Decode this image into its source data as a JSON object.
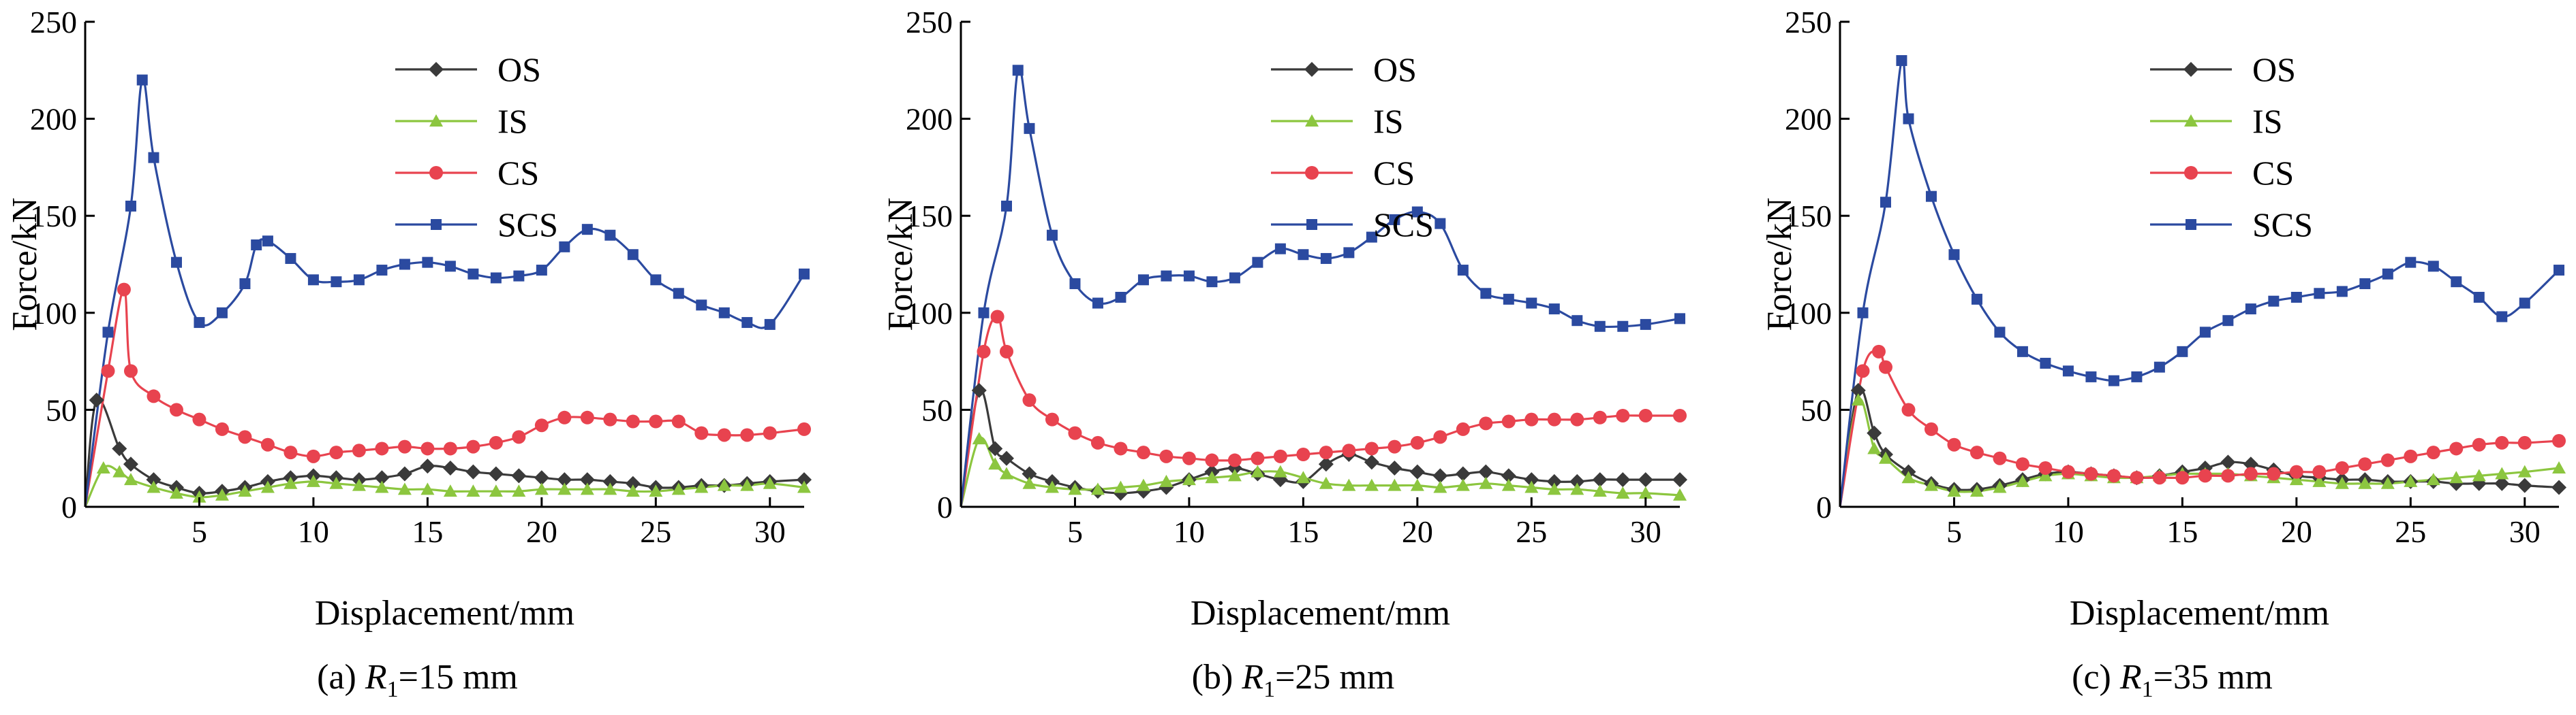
{
  "figure": {
    "panels": [
      {
        "caption_prefix": "(a)",
        "caption_suffix": "=15 mm"
      },
      {
        "caption_prefix": "(b)",
        "caption_suffix": "=25 mm"
      },
      {
        "caption_prefix": "(c)",
        "caption_suffix": "=35 mm"
      }
    ],
    "caption_var": "R",
    "caption_sub": "1"
  },
  "colors": {
    "OS": "#3a3a3a",
    "IS": "#8cc63f",
    "CS": "#e8434f",
    "SCS": "#2b4aa0"
  },
  "chart_data": [
    {
      "type": "line",
      "title": "(a) R1=15 mm",
      "xlabel": "Displacement/mm",
      "ylabel": "Force/kN",
      "xlim": [
        0,
        31.5
      ],
      "ylim": [
        0,
        250
      ],
      "xticks": [
        5,
        10,
        15,
        20,
        25,
        30
      ],
      "yticks": [
        0,
        50,
        100,
        150,
        200,
        250
      ],
      "legend": [
        "OS",
        "IS",
        "CS",
        "SCS"
      ],
      "series": [
        {
          "name": "OS",
          "marker": "diamond",
          "x": [
            0,
            0.5,
            1.5,
            2,
            3,
            4,
            5,
            6,
            7,
            8,
            9,
            10,
            11,
            12,
            13,
            14,
            15,
            16,
            17,
            18,
            19,
            20,
            21,
            22,
            23,
            24,
            25,
            26,
            27,
            28,
            29,
            30,
            31.5
          ],
          "y": [
            0,
            55,
            30,
            22,
            14,
            10,
            7,
            8,
            10,
            13,
            15,
            16,
            15,
            14,
            15,
            17,
            21,
            20,
            18,
            17,
            16,
            15,
            14,
            14,
            13,
            12,
            10,
            10,
            11,
            11,
            12,
            13,
            14
          ]
        },
        {
          "name": "IS",
          "marker": "triangle",
          "x": [
            0,
            0.8,
            1.5,
            2,
            3,
            4,
            5,
            6,
            7,
            8,
            9,
            10,
            11,
            12,
            13,
            14,
            15,
            16,
            17,
            18,
            19,
            20,
            21,
            22,
            23,
            24,
            25,
            26,
            27,
            28,
            29,
            30,
            31.5
          ],
          "y": [
            0,
            20,
            18,
            14,
            10,
            7,
            5,
            6,
            8,
            10,
            12,
            13,
            12,
            11,
            10,
            9,
            9,
            8,
            8,
            8,
            8,
            9,
            9,
            9,
            9,
            8,
            8,
            9,
            10,
            11,
            11,
            12,
            10
          ]
        },
        {
          "name": "CS",
          "marker": "circle",
          "x": [
            0,
            1,
            1.7,
            2,
            3,
            4,
            5,
            6,
            7,
            8,
            9,
            10,
            11,
            12,
            13,
            14,
            15,
            16,
            17,
            18,
            19,
            20,
            21,
            22,
            23,
            24,
            25,
            26,
            27,
            28,
            29,
            30,
            31.5
          ],
          "y": [
            0,
            70,
            112,
            70,
            57,
            50,
            45,
            40,
            36,
            32,
            28,
            26,
            28,
            29,
            30,
            31,
            30,
            30,
            31,
            33,
            36,
            42,
            46,
            46,
            45,
            44,
            44,
            44,
            38,
            37,
            37,
            38,
            40
          ]
        },
        {
          "name": "SCS",
          "marker": "square",
          "x": [
            0,
            1,
            2,
            2.5,
            3,
            4,
            5,
            6,
            7,
            7.5,
            8,
            9,
            10,
            11,
            12,
            13,
            14,
            15,
            16,
            17,
            18,
            19,
            20,
            21,
            22,
            23,
            24,
            25,
            26,
            27,
            28,
            29,
            30,
            31.5
          ],
          "y": [
            0,
            90,
            155,
            220,
            180,
            126,
            95,
            100,
            115,
            135,
            137,
            128,
            117,
            116,
            117,
            122,
            125,
            126,
            124,
            120,
            118,
            119,
            122,
            134,
            143,
            140,
            130,
            117,
            110,
            104,
            100,
            95,
            94,
            120
          ]
        }
      ]
    },
    {
      "type": "line",
      "title": "(b) R1=25 mm",
      "xlabel": "Displacement/mm",
      "ylabel": "Force/kN",
      "xlim": [
        0,
        31.5
      ],
      "ylim": [
        0,
        250
      ],
      "xticks": [
        5,
        10,
        15,
        20,
        25,
        30
      ],
      "yticks": [
        0,
        50,
        100,
        150,
        200,
        250
      ],
      "legend": [
        "OS",
        "IS",
        "CS",
        "SCS"
      ],
      "series": [
        {
          "name": "OS",
          "marker": "diamond",
          "x": [
            0,
            0.8,
            1.5,
            2,
            3,
            4,
            5,
            6,
            7,
            8,
            9,
            10,
            11,
            12,
            13,
            14,
            15,
            16,
            17,
            18,
            19,
            20,
            21,
            22,
            23,
            24,
            25,
            26,
            27,
            28,
            29,
            30,
            31.5
          ],
          "y": [
            0,
            60,
            30,
            25,
            17,
            13,
            10,
            8,
            7,
            8,
            10,
            14,
            18,
            20,
            17,
            14,
            13,
            22,
            27,
            23,
            20,
            18,
            16,
            17,
            18,
            16,
            14,
            13,
            13,
            14,
            14,
            14,
            14
          ]
        },
        {
          "name": "IS",
          "marker": "triangle",
          "x": [
            0,
            0.8,
            1.5,
            2,
            3,
            4,
            5,
            6,
            7,
            8,
            9,
            10,
            11,
            12,
            13,
            14,
            15,
            16,
            17,
            18,
            19,
            20,
            21,
            22,
            23,
            24,
            25,
            26,
            27,
            28,
            29,
            30,
            31.5
          ],
          "y": [
            0,
            35,
            22,
            17,
            12,
            10,
            9,
            9,
            10,
            11,
            13,
            14,
            15,
            16,
            18,
            18,
            15,
            12,
            11,
            11,
            11,
            11,
            10,
            11,
            12,
            11,
            10,
            9,
            9,
            8,
            7,
            7,
            6
          ]
        },
        {
          "name": "CS",
          "marker": "circle",
          "x": [
            0,
            1,
            1.6,
            2,
            3,
            4,
            5,
            6,
            7,
            8,
            9,
            10,
            11,
            12,
            13,
            14,
            15,
            16,
            17,
            18,
            19,
            20,
            21,
            22,
            23,
            24,
            25,
            26,
            27,
            28,
            29,
            30,
            31.5
          ],
          "y": [
            0,
            80,
            98,
            80,
            55,
            45,
            38,
            33,
            30,
            28,
            26,
            25,
            24,
            24,
            25,
            26,
            27,
            28,
            29,
            30,
            31,
            33,
            36,
            40,
            43,
            44,
            45,
            45,
            45,
            46,
            47,
            47,
            47
          ]
        },
        {
          "name": "SCS",
          "marker": "square",
          "x": [
            0,
            1,
            2,
            2.5,
            3,
            4,
            5,
            6,
            7,
            8,
            9,
            10,
            11,
            12,
            13,
            14,
            15,
            16,
            17,
            18,
            19,
            20,
            21,
            22,
            23,
            24,
            25,
            26,
            27,
            28,
            29,
            30,
            31.5
          ],
          "y": [
            0,
            100,
            155,
            225,
            195,
            140,
            115,
            105,
            108,
            117,
            119,
            119,
            116,
            118,
            126,
            133,
            130,
            128,
            131,
            139,
            148,
            152,
            146,
            122,
            110,
            107,
            105,
            102,
            96,
            93,
            93,
            94,
            97
          ]
        }
      ]
    },
    {
      "type": "line",
      "title": "(c) R1=35 mm",
      "xlabel": "Displacement/mm",
      "ylabel": "Force/kN",
      "xlim": [
        0,
        31.5
      ],
      "ylim": [
        0,
        250
      ],
      "xticks": [
        5,
        10,
        15,
        20,
        25,
        30
      ],
      "yticks": [
        0,
        50,
        100,
        150,
        200,
        250
      ],
      "legend": [
        "OS",
        "IS",
        "CS",
        "SCS"
      ],
      "series": [
        {
          "name": "OS",
          "marker": "diamond",
          "x": [
            0,
            0.8,
            1.5,
            2,
            3,
            4,
            5,
            6,
            7,
            8,
            9,
            10,
            11,
            12,
            13,
            14,
            15,
            16,
            17,
            18,
            19,
            20,
            21,
            22,
            23,
            24,
            25,
            26,
            27,
            28,
            29,
            30,
            31.5
          ],
          "y": [
            0,
            60,
            38,
            27,
            18,
            12,
            9,
            9,
            11,
            14,
            17,
            18,
            17,
            16,
            15,
            16,
            18,
            20,
            23,
            22,
            19,
            16,
            15,
            14,
            14,
            13,
            13,
            13,
            12,
            12,
            12,
            11,
            10
          ]
        },
        {
          "name": "IS",
          "marker": "triangle",
          "x": [
            0,
            0.8,
            1.5,
            2,
            3,
            4,
            5,
            6,
            7,
            8,
            9,
            10,
            11,
            12,
            13,
            14,
            15,
            16,
            17,
            18,
            19,
            20,
            21,
            22,
            23,
            24,
            25,
            26,
            27,
            28,
            29,
            30,
            31.5
          ],
          "y": [
            0,
            55,
            30,
            25,
            15,
            11,
            8,
            8,
            10,
            13,
            16,
            17,
            16,
            15,
            15,
            16,
            17,
            17,
            17,
            16,
            15,
            14,
            13,
            12,
            12,
            12,
            13,
            14,
            15,
            16,
            17,
            18,
            20
          ]
        },
        {
          "name": "CS",
          "marker": "circle",
          "x": [
            0,
            1,
            1.7,
            2,
            3,
            4,
            5,
            6,
            7,
            8,
            9,
            10,
            11,
            12,
            13,
            14,
            15,
            16,
            17,
            18,
            19,
            20,
            21,
            22,
            23,
            24,
            25,
            26,
            27,
            28,
            29,
            30,
            31.5
          ],
          "y": [
            0,
            70,
            80,
            72,
            50,
            40,
            32,
            28,
            25,
            22,
            20,
            18,
            17,
            16,
            15,
            15,
            15,
            16,
            16,
            17,
            17,
            18,
            18,
            20,
            22,
            24,
            26,
            28,
            30,
            32,
            33,
            33,
            34
          ]
        },
        {
          "name": "SCS",
          "marker": "square",
          "x": [
            0,
            1,
            2,
            2.7,
            3,
            4,
            5,
            6,
            7,
            8,
            9,
            10,
            11,
            12,
            13,
            14,
            15,
            16,
            17,
            18,
            19,
            20,
            21,
            22,
            23,
            24,
            25,
            26,
            27,
            28,
            29,
            30,
            31.5
          ],
          "y": [
            0,
            100,
            157,
            230,
            200,
            160,
            130,
            107,
            90,
            80,
            74,
            70,
            67,
            65,
            67,
            72,
            80,
            90,
            96,
            102,
            106,
            108,
            110,
            111,
            115,
            120,
            126,
            124,
            116,
            108,
            98,
            105,
            122
          ]
        }
      ]
    }
  ]
}
